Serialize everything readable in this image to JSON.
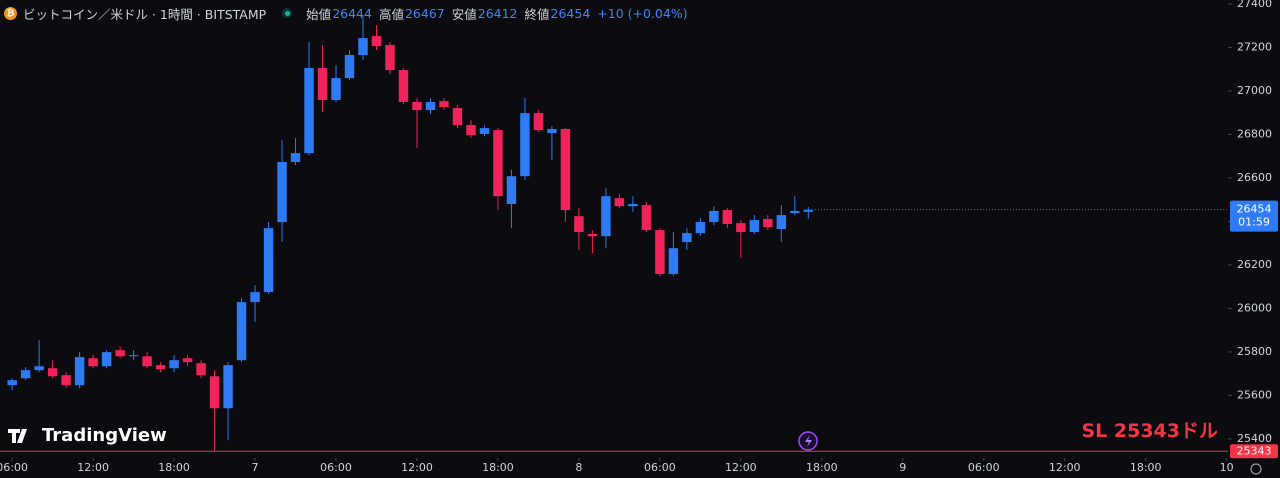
{
  "header": {
    "symbol": "ビットコイン／米ドル · 1時間 · BITSTAMP",
    "open_label": "始値",
    "high_label": "高値",
    "low_label": "安値",
    "close_label": "終値",
    "change": "+10 (+0.04%)"
  },
  "chart_data": {
    "type": "candlestick",
    "up_color": "#2f7bf5",
    "down_color": "#f0245a",
    "x": [
      0,
      1,
      2,
      3,
      4,
      5,
      6,
      7,
      8,
      9,
      10,
      11,
      12,
      13,
      14,
      15,
      16,
      17,
      18,
      19,
      20,
      21,
      22,
      23,
      24,
      25,
      26,
      27,
      28,
      29,
      30,
      31,
      32,
      33,
      34,
      35,
      36,
      37,
      38,
      39,
      40,
      41,
      42,
      43,
      44,
      45,
      46,
      47,
      48,
      49,
      50,
      51,
      52,
      53,
      54,
      55,
      56,
      57,
      58,
      59
    ],
    "open": [
      25647,
      25679,
      25716,
      25725,
      25693,
      25647,
      25771,
      25734,
      25808,
      25780,
      25780,
      25739,
      25725,
      25771,
      25748,
      25688,
      25541,
      25762,
      26029,
      26075,
      26397,
      26673,
      26714,
      27105,
      26958,
      27059,
      27165,
      27252,
      27211,
      27096,
      26949,
      26912,
      26953,
      26921,
      26843,
      26802,
      26820,
      26480,
      26608,
      26898,
      26806,
      26825,
      26424,
      26342,
      26332,
      26507,
      26470,
      26475,
      26360,
      26158,
      26305,
      26346,
      26397,
      26452,
      26392,
      26351,
      26411,
      26365,
      26438,
      26444
    ],
    "high": [
      25679,
      25730,
      25854,
      25762,
      25707,
      25799,
      25785,
      25808,
      25826,
      25808,
      25799,
      25753,
      25785,
      25785,
      25762,
      25716,
      25753,
      26047,
      26107,
      26397,
      26774,
      26783,
      27225,
      27211,
      27119,
      27188,
      27349,
      27303,
      27225,
      27105,
      26967,
      26967,
      26967,
      26935,
      26866,
      26843,
      26829,
      26636,
      26967,
      26912,
      26838,
      26829,
      26461,
      26360,
      26553,
      26526,
      26516,
      26489,
      26369,
      26351,
      26369,
      26415,
      26470,
      26461,
      26406,
      26429,
      26429,
      26475,
      26516,
      26467
    ],
    "low": [
      25624,
      25670,
      25707,
      25679,
      25633,
      25633,
      25725,
      25725,
      25771,
      25762,
      25725,
      25707,
      25707,
      25734,
      25679,
      25348,
      25394,
      25753,
      25937,
      26066,
      26305,
      26659,
      26705,
      26903,
      26949,
      27050,
      27142,
      27188,
      27077,
      26940,
      26737,
      26894,
      26912,
      26829,
      26783,
      26792,
      26452,
      26369,
      26590,
      26811,
      26682,
      26397,
      26268,
      26254,
      26277,
      26461,
      26443,
      26351,
      26148,
      26148,
      26268,
      26332,
      26383,
      26369,
      26231,
      26342,
      26360,
      26305,
      26429,
      26412
    ],
    "close": [
      25670,
      25716,
      25734,
      25688,
      25647,
      25776,
      25734,
      25799,
      25780,
      25785,
      25734,
      25721,
      25762,
      25753,
      25693,
      25541,
      25739,
      26029,
      26075,
      26369,
      26673,
      26714,
      27105,
      26958,
      27059,
      27165,
      27243,
      27206,
      27096,
      26949,
      26912,
      26949,
      26926,
      26843,
      26797,
      26829,
      26516,
      26608,
      26898,
      26820,
      26825,
      26452,
      26351,
      26332,
      26516,
      26470,
      26480,
      26360,
      26158,
      26277,
      26346,
      26397,
      26448,
      26388,
      26351,
      26406,
      26374,
      26429,
      26448,
      26454
    ],
    "xlim": [
      -0.9,
      90.1
    ],
    "xticks": [
      {
        "value": 0,
        "label": "06:00"
      },
      {
        "value": 6,
        "label": "12:00"
      },
      {
        "value": 12,
        "label": "18:00"
      },
      {
        "value": 18,
        "label": "7"
      },
      {
        "value": 24,
        "label": "06:00"
      },
      {
        "value": 30,
        "label": "12:00"
      },
      {
        "value": 36,
        "label": "18:00"
      },
      {
        "value": 42,
        "label": "8"
      },
      {
        "value": 48,
        "label": "06:00"
      },
      {
        "value": 54,
        "label": "12:00"
      },
      {
        "value": 60,
        "label": "18:00"
      },
      {
        "value": 66,
        "label": "9"
      },
      {
        "value": 72,
        "label": "06:00"
      },
      {
        "value": 78,
        "label": "12:00"
      },
      {
        "value": 84,
        "label": "18:00"
      },
      {
        "value": 90,
        "label": "10"
      }
    ],
    "ylim": [
      25326,
      27418
    ],
    "yticks": [
      25400,
      25600,
      25800,
      26000,
      26200,
      26400,
      26600,
      26800,
      27000,
      27200,
      27400
    ],
    "countdown": "01:59",
    "sl_price": 25343,
    "sl_text": "SL 25343ドル",
    "sl_color": "#f23645",
    "watermark": "TradingView"
  }
}
